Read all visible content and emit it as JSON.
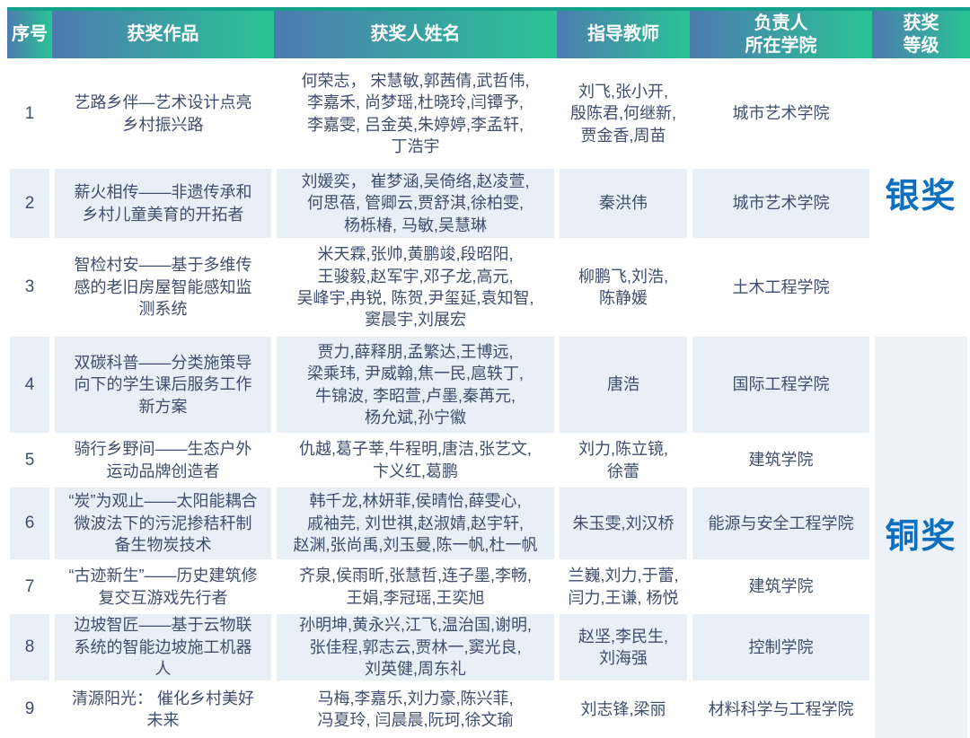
{
  "header": {
    "columns": [
      "序号",
      "获奖作品",
      "获奖人姓名",
      "指导教师",
      "负责人\n所在学院",
      "获奖\n等级"
    ]
  },
  "awards": [
    {
      "label": "银奖",
      "row_span": 3
    },
    {
      "label": "铜奖",
      "row_span": 6
    }
  ],
  "rows": [
    {
      "no": "1",
      "work": "艺路乡伴—艺术设计点亮\n乡村振兴路",
      "names": "何荣志， 宋慧敏,郭茜倩,武哲伟,\n李嘉禾, 尚梦瑶,杜晓玲,闫镡予,\n李嘉雯, 吕金英,朱婷婷,李孟轩,\n丁浩宇",
      "teachers": "刘飞,张小开,\n殷陈君,何继新,\n贾金香,周苗",
      "college": "城市艺术学院"
    },
    {
      "no": "2",
      "work": "薪火相传——非遗传承和\n乡村儿童美育的开拓者",
      "names": "刘媛奕， 崔梦涵,吴倚络,赵凌萱,\n何思蓓, 管卿云,贾舒淇,徐柏雯,\n杨栎椿, 马敏,吴慧琳",
      "teachers": "秦洪伟",
      "college": "城市艺术学院"
    },
    {
      "no": "3",
      "work": "智检村安——基于多维传\n感的老旧房屋智能感知监\n测系统",
      "names": "米天霖,张帅,黄鹏竣,段昭阳,\n王骏毅,赵军宇,邓子龙,高元,\n吴峰宇,冉锐, 陈贺,尹玺延,袁知智,\n窦晨宇,刘展宏",
      "teachers": "柳鹏飞,刘浩,\n陈静媛",
      "college": "土木工程学院"
    },
    {
      "no": "4",
      "work": "双碳科普——分类施策导\n向下的学生课后服务工作\n新方案",
      "names": "贾力,薛释朋,孟繁达,王博远,\n梁乘玮, 尹威翰,焦一民,扈轶丁,\n牛锦波, 李昭萱,卢墨,秦苒元,\n杨允斌,孙宁徽",
      "teachers": "唐浩",
      "college": "国际工程学院"
    },
    {
      "no": "5",
      "work": "骑行乡野间——生态户外\n运动品牌创造者",
      "names": "仇越,葛子莘,牛程明,唐洁,张艺文,\n卞义红,葛鹏",
      "teachers": "刘力,陈立镜,\n徐蕾",
      "college": "建筑学院"
    },
    {
      "no": "6",
      "work": "“炭”为观止——太阳能耦合\n微波法下的污泥掺秸秆制\n备生物炭技术",
      "names": "韩千龙,林妍菲,侯晴怡,薛雯心,\n戚袖芫, 刘世祺,赵淑婧,赵宇轩,\n赵渊,张尚禹,刘玉曼,陈一帆,杜一帆",
      "teachers": "朱玉雯,刘汉桥",
      "college": "能源与安全工程学院"
    },
    {
      "no": "7",
      "work": "“古迹新生”——历史建筑修\n复交互游戏先行者",
      "names": "齐泉,侯雨昕,张慧哲,连子墨,李畅,\n王娟,李冠瑶,王奕旭",
      "teachers": "兰巍,刘力,于蕾,\n闫力,王谦, 杨悦",
      "college": "建筑学院"
    },
    {
      "no": "8",
      "work": "边坡智匠——基于云物联\n系统的智能边坡施工机器\n人",
      "names": "孙明坤,黄永兴,江飞,温治国,谢明,\n张佳程,郭志云,贾林一,窦光良,\n刘英健,周东礼",
      "teachers": "赵坚,李民生,\n刘海强",
      "college": "控制学院"
    },
    {
      "no": "9",
      "work": "清源阳光： 催化乡村美好\n未来",
      "names": "马梅,李嘉乐,刘力豪,陈兴菲,\n冯夏玲, 闫晨晨,阮珂,徐文瑜",
      "teachers": "刘志锋,梁丽",
      "college": "材料科学与工程学院"
    }
  ],
  "colors": {
    "header_gradient_start": "#4d7bb0",
    "header_gradient_end": "#29c494",
    "top_line": "#12a18b",
    "row_tint": "#e9eff6",
    "body_text": "#3f4e6e",
    "award_text": "#0d6fbe"
  }
}
